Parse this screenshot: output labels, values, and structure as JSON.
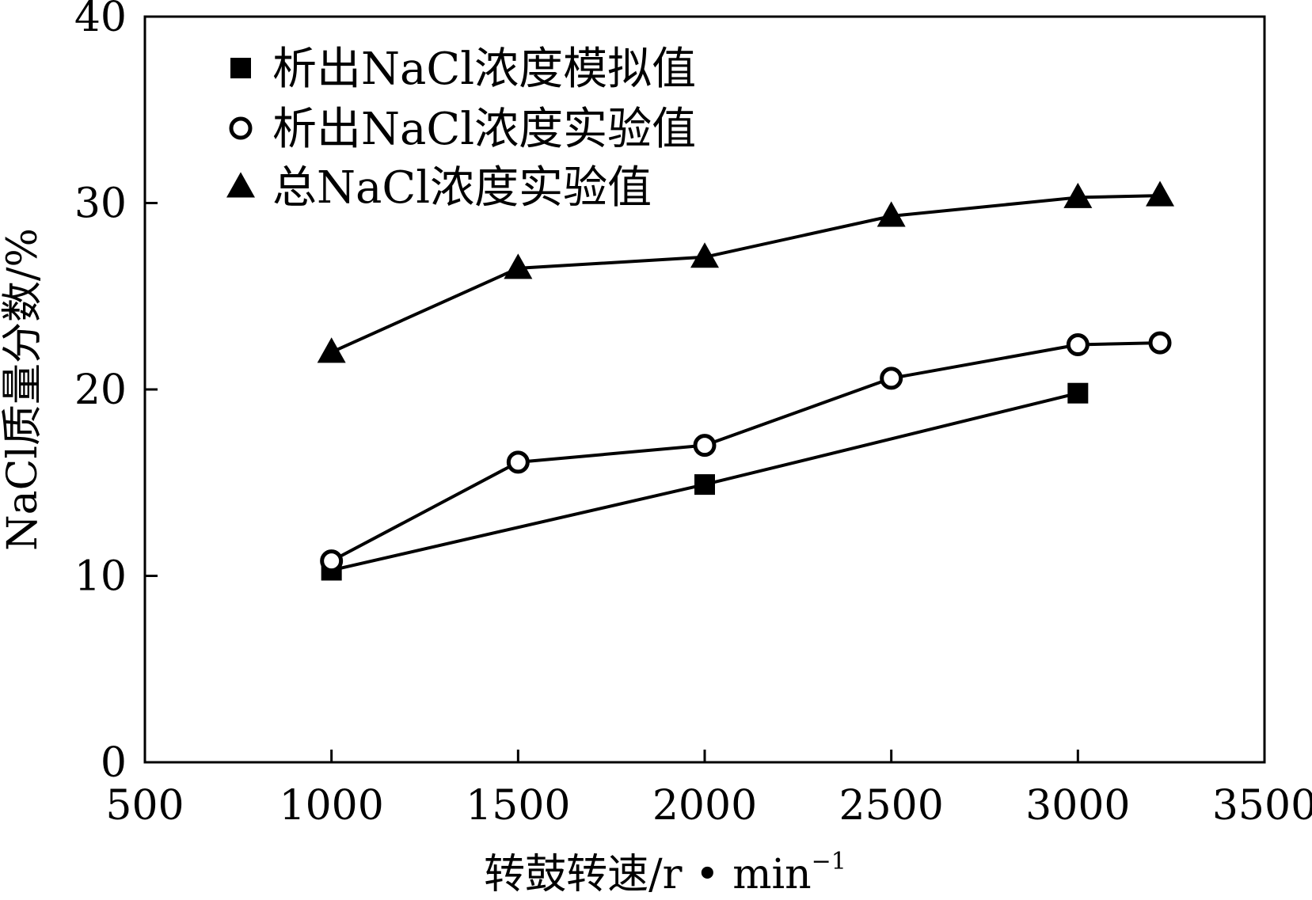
{
  "chart_data": {
    "type": "line",
    "title": "",
    "xlabel": "转鼓转速/r • min",
    "xlabel_superscript": "−1",
    "ylabel": "NaCl质量分数/%",
    "xlim": [
      500,
      3500
    ],
    "ylim": [
      0,
      40
    ],
    "xticks": [
      500,
      1000,
      1500,
      2000,
      2500,
      3000,
      3500
    ],
    "yticks": [
      0,
      10,
      20,
      30,
      40
    ],
    "grid": false,
    "legend_position": "top-left",
    "series": [
      {
        "name": "析出NaCl浓度模拟值",
        "marker": "square",
        "x": [
          1000,
          2000,
          3000
        ],
        "y": [
          10.3,
          14.9,
          19.8
        ]
      },
      {
        "name": "析出NaCl浓度实验值",
        "marker": "circle",
        "x": [
          1000,
          1500,
          2000,
          2500,
          3000,
          3220
        ],
        "y": [
          10.8,
          16.1,
          17.0,
          20.6,
          22.4,
          22.5
        ]
      },
      {
        "name": "总NaCl浓度实验值",
        "marker": "triangle",
        "x": [
          1000,
          1500,
          2000,
          2500,
          3000,
          3220
        ],
        "y": [
          22.0,
          26.5,
          27.1,
          29.3,
          30.3,
          30.4
        ]
      }
    ]
  }
}
